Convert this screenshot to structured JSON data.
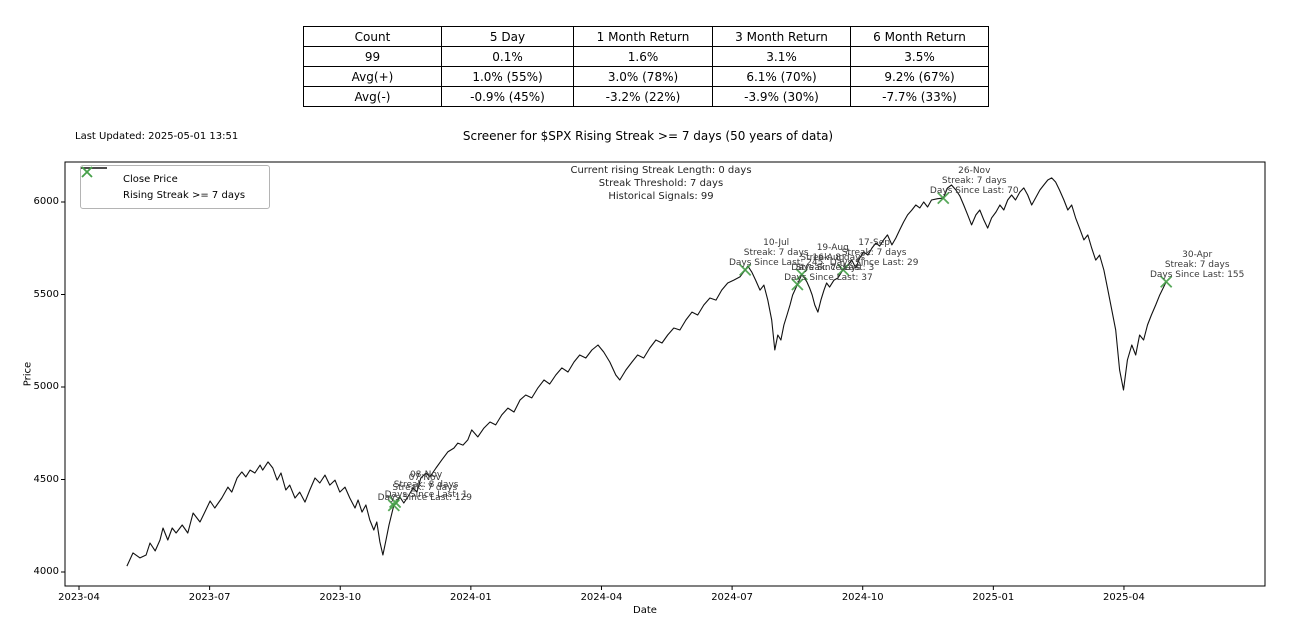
{
  "table": {
    "headers": [
      "Count",
      "5 Day",
      "1 Month Return",
      "3 Month Return",
      "6 Month Return"
    ],
    "rows": [
      [
        "99",
        "0.1%",
        "1.6%",
        "3.1%",
        "3.5%"
      ],
      [
        "Avg(+)",
        "1.0% (55%)",
        "3.0% (78%)",
        "6.1% (70%)",
        "9.2% (67%)"
      ],
      [
        "Avg(-)",
        "-0.9% (45%)",
        "-3.2% (22%)",
        "-3.9% (30%)",
        "-7.7% (33%)"
      ]
    ]
  },
  "header": {
    "last_updated": "Last Updated: 2025-05-01 13:51",
    "title": "Screener for $SPX Rising Streak >= 7 days (50 years of data)"
  },
  "info_box": {
    "line1": "Current rising Streak Length: 0 days",
    "line2": "Streak Threshold: 7 days",
    "line3": "Historical Signals: 99"
  },
  "legend": {
    "close_price_label": "Close Price",
    "rising_streak_label": "Rising Streak >= 7 days"
  },
  "chart_data": {
    "type": "line",
    "title": "Screener for $SPX Rising Streak >= 7 days (50 years of data)",
    "xlabel": "Date",
    "ylabel": "Price",
    "x_ticks": [
      "2023-04",
      "2023-07",
      "2023-10",
      "2024-01",
      "2024-04",
      "2024-07",
      "2024-10",
      "2025-01",
      "2025-04"
    ],
    "x_tick_months": [
      0,
      3,
      6,
      9,
      12,
      15,
      18,
      21,
      24
    ],
    "y_ticks": [
      "4000",
      "4500",
      "5000",
      "5500",
      "6000"
    ],
    "y_tick_values": [
      4000,
      4500,
      5000,
      5500,
      6000
    ],
    "ylim": [
      3925,
      6215
    ],
    "xlim_months": [
      -0.32,
      27.24
    ],
    "grid": false,
    "legend_position": "upper left",
    "line_color": "#111111",
    "marker_color": "#46a049",
    "close_price": [
      [
        1.1,
        4032
      ],
      [
        1.24,
        4103
      ],
      [
        1.4,
        4076
      ],
      [
        1.54,
        4092
      ],
      [
        1.63,
        4157
      ],
      [
        1.75,
        4114
      ],
      [
        1.86,
        4173
      ],
      [
        1.93,
        4238
      ],
      [
        2.04,
        4173
      ],
      [
        2.14,
        4238
      ],
      [
        2.23,
        4211
      ],
      [
        2.37,
        4254
      ],
      [
        2.5,
        4211
      ],
      [
        2.62,
        4319
      ],
      [
        2.78,
        4270
      ],
      [
        2.89,
        4324
      ],
      [
        3.01,
        4384
      ],
      [
        3.12,
        4346
      ],
      [
        3.28,
        4400
      ],
      [
        3.42,
        4459
      ],
      [
        3.51,
        4432
      ],
      [
        3.63,
        4508
      ],
      [
        3.74,
        4541
      ],
      [
        3.83,
        4514
      ],
      [
        3.93,
        4551
      ],
      [
        4.04,
        4535
      ],
      [
        4.16,
        4578
      ],
      [
        4.22,
        4551
      ],
      [
        4.34,
        4595
      ],
      [
        4.45,
        4562
      ],
      [
        4.55,
        4497
      ],
      [
        4.64,
        4535
      ],
      [
        4.75,
        4443
      ],
      [
        4.84,
        4470
      ],
      [
        4.96,
        4400
      ],
      [
        5.07,
        4432
      ],
      [
        5.19,
        4378
      ],
      [
        5.3,
        4443
      ],
      [
        5.42,
        4508
      ],
      [
        5.53,
        4481
      ],
      [
        5.65,
        4524
      ],
      [
        5.76,
        4470
      ],
      [
        5.88,
        4497
      ],
      [
        5.99,
        4432
      ],
      [
        6.11,
        4459
      ],
      [
        6.22,
        4400
      ],
      [
        6.34,
        4346
      ],
      [
        6.41,
        4389
      ],
      [
        6.5,
        4324
      ],
      [
        6.59,
        4362
      ],
      [
        6.68,
        4281
      ],
      [
        6.77,
        4227
      ],
      [
        6.84,
        4270
      ],
      [
        6.91,
        4162
      ],
      [
        6.98,
        4092
      ],
      [
        7.05,
        4173
      ],
      [
        7.12,
        4254
      ],
      [
        7.23,
        4360
      ],
      [
        7.28,
        4370
      ],
      [
        7.37,
        4405
      ],
      [
        7.46,
        4373
      ],
      [
        7.55,
        4405
      ],
      [
        7.67,
        4454
      ],
      [
        7.76,
        4432
      ],
      [
        7.85,
        4508
      ],
      [
        7.97,
        4535
      ],
      [
        8.06,
        4514
      ],
      [
        8.2,
        4562
      ],
      [
        8.33,
        4605
      ],
      [
        8.47,
        4649
      ],
      [
        8.61,
        4670
      ],
      [
        8.7,
        4697
      ],
      [
        8.82,
        4686
      ],
      [
        8.93,
        4714
      ],
      [
        9.02,
        4768
      ],
      [
        9.16,
        4730
      ],
      [
        9.3,
        4778
      ],
      [
        9.44,
        4811
      ],
      [
        9.57,
        4795
      ],
      [
        9.71,
        4849
      ],
      [
        9.85,
        4886
      ],
      [
        9.99,
        4865
      ],
      [
        10.13,
        4930
      ],
      [
        10.26,
        4957
      ],
      [
        10.4,
        4941
      ],
      [
        10.54,
        4995
      ],
      [
        10.68,
        5038
      ],
      [
        10.81,
        5016
      ],
      [
        10.95,
        5065
      ],
      [
        11.09,
        5103
      ],
      [
        11.23,
        5081
      ],
      [
        11.37,
        5135
      ],
      [
        11.5,
        5173
      ],
      [
        11.64,
        5157
      ],
      [
        11.78,
        5200
      ],
      [
        11.92,
        5227
      ],
      [
        12.05,
        5189
      ],
      [
        12.19,
        5135
      ],
      [
        12.33,
        5065
      ],
      [
        12.42,
        5038
      ],
      [
        12.56,
        5092
      ],
      [
        12.7,
        5135
      ],
      [
        12.83,
        5173
      ],
      [
        12.97,
        5157
      ],
      [
        13.11,
        5211
      ],
      [
        13.25,
        5254
      ],
      [
        13.39,
        5238
      ],
      [
        13.52,
        5281
      ],
      [
        13.66,
        5319
      ],
      [
        13.8,
        5308
      ],
      [
        13.94,
        5362
      ],
      [
        14.08,
        5405
      ],
      [
        14.21,
        5389
      ],
      [
        14.35,
        5443
      ],
      [
        14.49,
        5481
      ],
      [
        14.63,
        5470
      ],
      [
        14.76,
        5524
      ],
      [
        14.9,
        5562
      ],
      [
        15.04,
        5578
      ],
      [
        15.18,
        5595
      ],
      [
        15.3,
        5633
      ],
      [
        15.36,
        5654
      ],
      [
        15.45,
        5622
      ],
      [
        15.54,
        5578
      ],
      [
        15.64,
        5524
      ],
      [
        15.73,
        5551
      ],
      [
        15.82,
        5470
      ],
      [
        15.91,
        5362
      ],
      [
        15.98,
        5200
      ],
      [
        16.05,
        5281
      ],
      [
        16.12,
        5254
      ],
      [
        16.19,
        5335
      ],
      [
        16.26,
        5389
      ],
      [
        16.33,
        5443
      ],
      [
        16.39,
        5497
      ],
      [
        16.5,
        5554
      ],
      [
        16.6,
        5608
      ],
      [
        16.66,
        5589
      ],
      [
        16.72,
        5567
      ],
      [
        16.78,
        5535
      ],
      [
        16.84,
        5497
      ],
      [
        16.9,
        5443
      ],
      [
        16.97,
        5405
      ],
      [
        17.04,
        5470
      ],
      [
        17.11,
        5524
      ],
      [
        17.17,
        5562
      ],
      [
        17.24,
        5540
      ],
      [
        17.34,
        5578
      ],
      [
        17.43,
        5589
      ],
      [
        17.55,
        5634
      ],
      [
        17.66,
        5659
      ],
      [
        17.75,
        5686
      ],
      [
        17.84,
        5643
      ],
      [
        17.93,
        5697
      ],
      [
        18.02,
        5730
      ],
      [
        18.12,
        5713
      ],
      [
        18.21,
        5751
      ],
      [
        18.3,
        5778
      ],
      [
        18.39,
        5762
      ],
      [
        18.48,
        5795
      ],
      [
        18.57,
        5822
      ],
      [
        18.67,
        5768
      ],
      [
        18.76,
        5805
      ],
      [
        18.85,
        5849
      ],
      [
        18.94,
        5892
      ],
      [
        19.03,
        5930
      ],
      [
        19.13,
        5957
      ],
      [
        19.22,
        5984
      ],
      [
        19.31,
        5968
      ],
      [
        19.4,
        6000
      ],
      [
        19.49,
        5973
      ],
      [
        19.58,
        6011
      ],
      [
        19.72,
        6018
      ],
      [
        19.85,
        6021
      ],
      [
        19.95,
        6076
      ],
      [
        20.04,
        6092
      ],
      [
        20.14,
        6065
      ],
      [
        20.23,
        6033
      ],
      [
        20.32,
        5984
      ],
      [
        20.41,
        5930
      ],
      [
        20.5,
        5876
      ],
      [
        20.6,
        5930
      ],
      [
        20.69,
        5957
      ],
      [
        20.78,
        5903
      ],
      [
        20.87,
        5859
      ],
      [
        20.96,
        5914
      ],
      [
        21.06,
        5946
      ],
      [
        21.15,
        5984
      ],
      [
        21.24,
        5957
      ],
      [
        21.33,
        6011
      ],
      [
        21.42,
        6038
      ],
      [
        21.51,
        6011
      ],
      [
        21.61,
        6054
      ],
      [
        21.7,
        6076
      ],
      [
        21.79,
        6038
      ],
      [
        21.88,
        5984
      ],
      [
        21.97,
        6022
      ],
      [
        22.07,
        6065
      ],
      [
        22.16,
        6092
      ],
      [
        22.25,
        6119
      ],
      [
        22.34,
        6130
      ],
      [
        22.43,
        6108
      ],
      [
        22.52,
        6065
      ],
      [
        22.62,
        6011
      ],
      [
        22.71,
        5957
      ],
      [
        22.8,
        5984
      ],
      [
        22.89,
        5914
      ],
      [
        22.98,
        5859
      ],
      [
        23.08,
        5795
      ],
      [
        23.17,
        5822
      ],
      [
        23.26,
        5751
      ],
      [
        23.35,
        5686
      ],
      [
        23.44,
        5713
      ],
      [
        23.54,
        5632
      ],
      [
        23.63,
        5524
      ],
      [
        23.72,
        5416
      ],
      [
        23.81,
        5308
      ],
      [
        23.9,
        5092
      ],
      [
        23.99,
        4984
      ],
      [
        24.08,
        5146
      ],
      [
        24.18,
        5227
      ],
      [
        24.27,
        5173
      ],
      [
        24.36,
        5281
      ],
      [
        24.45,
        5254
      ],
      [
        24.54,
        5335
      ],
      [
        24.63,
        5389
      ],
      [
        24.73,
        5443
      ],
      [
        24.82,
        5497
      ],
      [
        24.97,
        5569
      ]
    ],
    "signals": [
      {
        "date_label": "07-Nov",
        "streak_label": "Streak: 7 days",
        "since_label": "Days Since Last: 129",
        "month": 7.23,
        "price": 4360
      },
      {
        "date_label": "08-Nov",
        "streak_label": "Streak: 8 days",
        "since_label": "Days Since Last: 1",
        "month": 7.26,
        "price": 4378
      },
      {
        "date_label": "10-Jul",
        "streak_label": "Streak: 7 days",
        "since_label": "Days Since Last: 245",
        "month": 15.3,
        "price": 5633
      },
      {
        "date_label": "16-Aug",
        "streak_label": "Streak: 7 days",
        "since_label": "Days Since Last: 37",
        "month": 16.5,
        "price": 5554
      },
      {
        "date_label": "19-Aug",
        "streak_label": "Streak: 8 days",
        "since_label": "Days Since Last: 3",
        "month": 16.6,
        "price": 5608
      },
      {
        "date_label": "17-Sep",
        "streak_label": "Streak: 7 days",
        "since_label": "Days Since Last: 29",
        "month": 17.55,
        "price": 5634
      },
      {
        "date_label": "26-Nov",
        "streak_label": "Streak: 7 days",
        "since_label": "Days Since Last: 70",
        "month": 19.85,
        "price": 6021
      },
      {
        "date_label": "30-Apr",
        "streak_label": "Streak: 7 days",
        "since_label": "Days Since Last: 155",
        "month": 24.97,
        "price": 5569
      }
    ]
  }
}
